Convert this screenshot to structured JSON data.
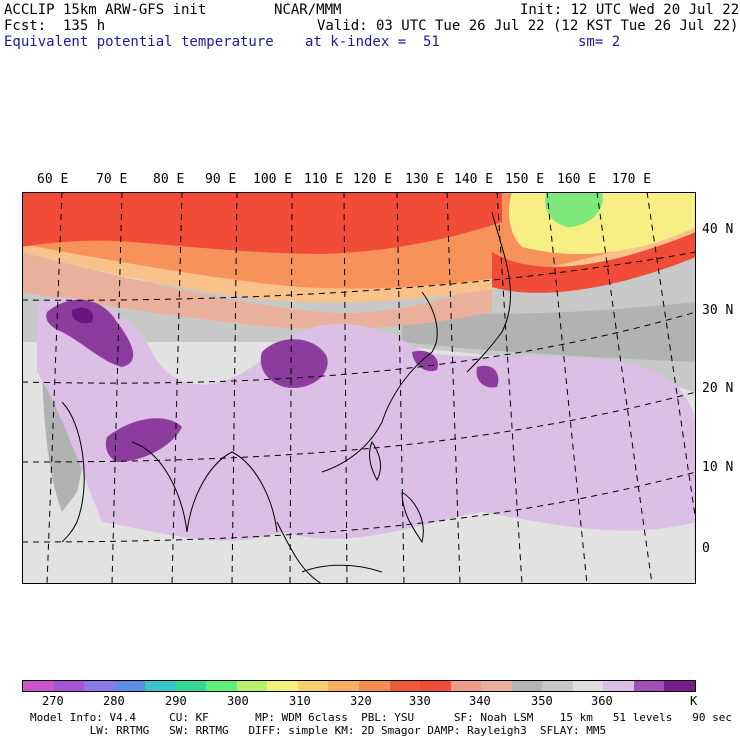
{
  "header": {
    "left_line1": "ACCLIP 15km ARW-GFS init",
    "left_line2": "Fcst:  135 h",
    "left_line3": "Equivalent potential temperature",
    "center_line1": "NCAR/MMM",
    "center_line2": "Valid: 03 UTC Tue 26 Jul 22 (12 KST Tue 26 Jul 22)",
    "center_line3": "at k-index =  51",
    "right_line1": "Init: 12 UTC Wed 20 Jul 22",
    "right_line3": "sm= 2"
  },
  "map": {
    "longitude_labels": [
      "60 E",
      "70 E",
      "80 E",
      "90 E",
      "100 E",
      "110 E",
      "120 E",
      "130 E",
      "140 E",
      "150 E",
      "160 E",
      "170 E"
    ],
    "latitude_labels": [
      "40 N",
      "30 N",
      "20 N",
      "10 N",
      "0"
    ],
    "colors": {
      "red": "#f04c38",
      "orange": "#f7935a",
      "light_orange": "#f9c28a",
      "yellow": "#f7ef83",
      "green": "#7ee87c",
      "salmon": "#e9b09c",
      "dark_gray": "#b2b2b2",
      "mid_gray": "#c8c8c8",
      "light_gray": "#e2e2e2",
      "lavender": "#dcbfe4",
      "purple": "#8c3c9c",
      "dark_purple": "#6a1480"
    }
  },
  "colorbar": {
    "colors": [
      "#cc55cc",
      "#a655d4",
      "#8c78e8",
      "#5c8ee8",
      "#39c5c5",
      "#35d890",
      "#5ef07a",
      "#b8f070",
      "#f5f07a",
      "#f7cf6c",
      "#f7b063",
      "#f58c52",
      "#f05a3c",
      "#f04c38",
      "#f09a88",
      "#e9b09c",
      "#b4b4b4",
      "#c8c8c8",
      "#dedede",
      "#dcbfe4",
      "#a050b4",
      "#7a1c8c"
    ],
    "labels": [
      "270",
      "280",
      "290",
      "300",
      "310",
      "320",
      "330",
      "340",
      "350",
      "360"
    ],
    "unit": "K"
  },
  "footer": {
    "line1": "Model Info: V4.4     CU: KF       MP: WDM 6class  PBL: YSU      SF: Noah LSM    15 km   51 levels   90 sec",
    "line2": "         LW: RRTMG   SW: RRTMG   DIFF: simple KM: 2D Smagor DAMP: Rayleigh3  SFLAY: MM5"
  }
}
